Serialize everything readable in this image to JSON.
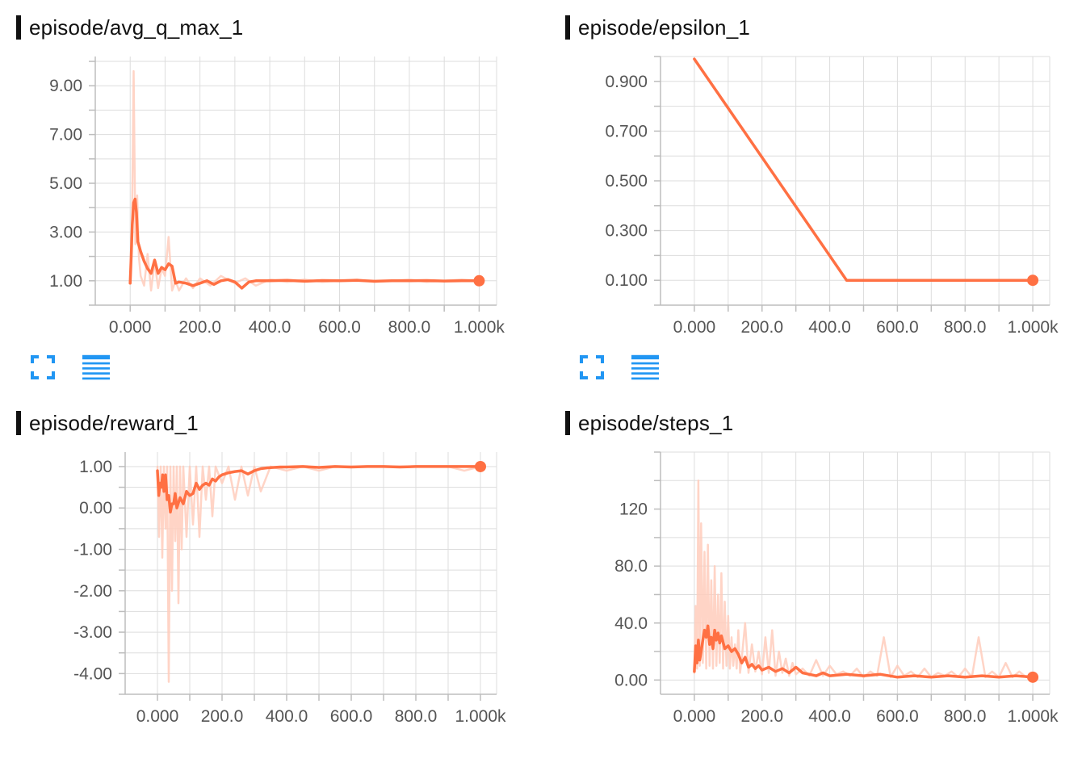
{
  "colors": {
    "line": "#FF7043",
    "raw": "#FFCCBC",
    "grid": "#DDDDDD",
    "axis": "#BDBDBD",
    "icon": "#2196F3"
  },
  "toolbar": {
    "expand_icon": "fullscreen-icon",
    "data_icon": "list-icon"
  },
  "chart_data": [
    {
      "type": "line",
      "title": "episode/avg_q_max_1",
      "xlim": [
        -100,
        1050
      ],
      "ylim": [
        0,
        10.2
      ],
      "x_ticks": [
        0,
        200,
        400,
        600,
        800,
        1000
      ],
      "x_tick_labels": [
        "0.000",
        "200.0",
        "400.0",
        "600.0",
        "800.0",
        "1.000k"
      ],
      "y_ticks": [
        1,
        3,
        5,
        7,
        9
      ],
      "y_tick_labels": [
        "1.00",
        "3.00",
        "5.00",
        "7.00",
        "9.00"
      ],
      "series": [
        {
          "role": "raw",
          "x": [
            0,
            5,
            10,
            15,
            20,
            25,
            30,
            40,
            50,
            60,
            70,
            80,
            90,
            100,
            110,
            120,
            130,
            140,
            160,
            180,
            200,
            230,
            260,
            300,
            330,
            360,
            400,
            450,
            500,
            550,
            600,
            650,
            700,
            750,
            800,
            850,
            900,
            950,
            1000
          ],
          "y": [
            1,
            3,
            9.6,
            2.5,
            4.5,
            2.0,
            1.2,
            0.8,
            2.1,
            0.6,
            1.8,
            0.7,
            1.5,
            1.2,
            2.8,
            0.6,
            1.0,
            0.6,
            1.1,
            0.7,
            1.1,
            0.8,
            1.2,
            0.9,
            1.1,
            0.8,
            1.05,
            0.95,
            1.05,
            0.95,
            1.0,
            1.05,
            0.95,
            1.0,
            1.05,
            0.95,
            1.0,
            1.05,
            1.0
          ]
        },
        {
          "role": "smoothed",
          "x": [
            0,
            3,
            6,
            10,
            14,
            18,
            22,
            26,
            30,
            40,
            50,
            60,
            70,
            80,
            90,
            100,
            110,
            120,
            130,
            140,
            160,
            180,
            200,
            220,
            240,
            260,
            280,
            300,
            320,
            340,
            360,
            400,
            450,
            500,
            550,
            600,
            650,
            700,
            750,
            800,
            850,
            900,
            950,
            1000
          ],
          "y": [
            0.9,
            2.0,
            3.3,
            4.2,
            4.35,
            3.8,
            2.6,
            2.4,
            2.2,
            1.8,
            1.5,
            1.3,
            1.85,
            1.3,
            1.55,
            1.45,
            1.7,
            1.6,
            0.9,
            0.95,
            0.9,
            0.8,
            0.9,
            1.0,
            0.85,
            1.0,
            1.05,
            0.95,
            0.7,
            0.95,
            1.0,
            1.0,
            1.02,
            0.98,
            1.01,
            1.0,
            1.02,
            0.98,
            1.0,
            1.0,
            1.01,
            0.99,
            1.0,
            1.0
          ]
        }
      ]
    },
    {
      "type": "line",
      "title": "episode/epsilon_1",
      "xlim": [
        -100,
        1050
      ],
      "ylim": [
        0.0,
        1.0
      ],
      "x_ticks": [
        0,
        200,
        400,
        600,
        800,
        1000
      ],
      "x_tick_labels": [
        "0.000",
        "200.0",
        "400.0",
        "600.0",
        "800.0",
        "1.000k"
      ],
      "y_ticks": [
        0.1,
        0.3,
        0.5,
        0.7,
        0.9
      ],
      "y_tick_labels": [
        "0.100",
        "0.300",
        "0.500",
        "0.700",
        "0.900"
      ],
      "series": [
        {
          "role": "smoothed",
          "x": [
            0,
            450,
            1000
          ],
          "y": [
            0.99,
            0.1,
            0.1
          ]
        }
      ]
    },
    {
      "type": "line",
      "title": "episode/reward_1",
      "xlim": [
        -100,
        1050
      ],
      "ylim": [
        -4.5,
        1.35
      ],
      "x_ticks": [
        0,
        200,
        400,
        600,
        800,
        1000
      ],
      "x_tick_labels": [
        "0.000",
        "200.0",
        "400.0",
        "600.0",
        "800.0",
        "1.000k"
      ],
      "y_ticks": [
        1,
        0,
        -1,
        -2,
        -3,
        -4
      ],
      "y_tick_labels": [
        "1.00",
        "0.00",
        "-1.00",
        "-2.00",
        "-3.00",
        "-4.00"
      ],
      "series": [
        {
          "role": "raw",
          "x": [
            0,
            5,
            10,
            15,
            20,
            25,
            30,
            35,
            40,
            45,
            50,
            55,
            60,
            65,
            70,
            75,
            80,
            90,
            100,
            110,
            120,
            130,
            140,
            150,
            160,
            170,
            180,
            200,
            220,
            240,
            260,
            280,
            300,
            320,
            350,
            400,
            450,
            500,
            550,
            600,
            650,
            700,
            750,
            800,
            850,
            900,
            950,
            1000
          ],
          "y": [
            1,
            -0.7,
            1,
            -1.2,
            1,
            -0.5,
            1,
            -4.2,
            1,
            -2.0,
            1,
            -0.8,
            1,
            -2.3,
            1,
            -1.0,
            1,
            -0.7,
            1,
            -0.4,
            1,
            -0.7,
            1,
            0.2,
            1,
            -0.2,
            1,
            0.6,
            1,
            0.2,
            1,
            0.3,
            1,
            0.4,
            1,
            0.9,
            1,
            0.9,
            1,
            1,
            1,
            1,
            1,
            1,
            1,
            1,
            0.9,
            1
          ]
        },
        {
          "role": "smoothed",
          "x": [
            0,
            4,
            8,
            12,
            16,
            20,
            25,
            30,
            35,
            40,
            45,
            50,
            55,
            60,
            70,
            80,
            90,
            100,
            110,
            120,
            130,
            140,
            150,
            160,
            170,
            180,
            190,
            200,
            220,
            240,
            260,
            280,
            300,
            320,
            340,
            360,
            380,
            400,
            450,
            500,
            550,
            600,
            650,
            700,
            750,
            800,
            850,
            900,
            950,
            1000
          ],
          "y": [
            0.9,
            0.3,
            0.6,
            0.5,
            0.8,
            0.4,
            0.8,
            0.2,
            0.3,
            -0.1,
            0.1,
            0.1,
            0.35,
            0.0,
            0.25,
            0.1,
            0.4,
            0.3,
            0.35,
            0.6,
            0.45,
            0.55,
            0.6,
            0.55,
            0.7,
            0.65,
            0.75,
            0.8,
            0.85,
            0.88,
            0.9,
            0.82,
            0.9,
            0.95,
            0.97,
            0.98,
            0.99,
            0.99,
            1.0,
            0.98,
            1.0,
            0.99,
            1.0,
            1.0,
            0.99,
            1.0,
            1.0,
            1.0,
            1.0,
            1.0
          ]
        }
      ]
    },
    {
      "type": "line",
      "title": "episode/steps_1",
      "xlim": [
        -100,
        1050
      ],
      "ylim": [
        -10,
        160
      ],
      "x_ticks": [
        0,
        200,
        400,
        600,
        800,
        1000
      ],
      "x_tick_labels": [
        "0.000",
        "200.0",
        "400.0",
        "600.0",
        "800.0",
        "1.000k"
      ],
      "y_ticks": [
        0,
        40,
        80,
        120
      ],
      "y_tick_labels": [
        "0.00",
        "40.0",
        "80.0",
        "120"
      ],
      "series": [
        {
          "role": "raw",
          "x": [
            0,
            4,
            8,
            12,
            16,
            20,
            25,
            30,
            35,
            40,
            45,
            50,
            55,
            60,
            65,
            70,
            75,
            80,
            85,
            90,
            95,
            100,
            105,
            110,
            115,
            120,
            125,
            130,
            135,
            140,
            150,
            160,
            170,
            180,
            190,
            200,
            210,
            220,
            230,
            240,
            250,
            260,
            270,
            280,
            290,
            300,
            320,
            340,
            360,
            380,
            400,
            420,
            440,
            460,
            480,
            500,
            520,
            540,
            560,
            580,
            600,
            620,
            640,
            660,
            680,
            700,
            720,
            740,
            760,
            780,
            800,
            820,
            840,
            860,
            880,
            900,
            920,
            940,
            960,
            980,
            1000
          ],
          "y": [
            5,
            52,
            8,
            140,
            10,
            110,
            12,
            90,
            8,
            95,
            10,
            70,
            8,
            80,
            10,
            60,
            12,
            75,
            8,
            55,
            10,
            45,
            8,
            30,
            10,
            25,
            8,
            35,
            5,
            15,
            40,
            5,
            25,
            6,
            20,
            4,
            30,
            5,
            35,
            3,
            20,
            5,
            15,
            3,
            12,
            4,
            8,
            3,
            14,
            3,
            10,
            4,
            6,
            3,
            8,
            2,
            6,
            3,
            30,
            2,
            10,
            3,
            6,
            2,
            8,
            2,
            5,
            3,
            6,
            2,
            8,
            2,
            30,
            2,
            6,
            2,
            12,
            2,
            6,
            2,
            3
          ]
        },
        {
          "role": "smoothed",
          "x": [
            0,
            4,
            8,
            12,
            16,
            20,
            25,
            30,
            35,
            40,
            45,
            50,
            55,
            60,
            65,
            70,
            75,
            80,
            90,
            100,
            110,
            120,
            130,
            140,
            150,
            160,
            170,
            180,
            190,
            200,
            220,
            240,
            260,
            280,
            300,
            320,
            340,
            360,
            380,
            400,
            450,
            500,
            550,
            600,
            650,
            700,
            750,
            800,
            850,
            900,
            950,
            1000
          ],
          "y": [
            6,
            24,
            12,
            28,
            14,
            20,
            28,
            35,
            30,
            38,
            25,
            30,
            22,
            35,
            28,
            33,
            26,
            31,
            22,
            24,
            20,
            22,
            18,
            12,
            16,
            9,
            11,
            8,
            10,
            7,
            9,
            6,
            8,
            5,
            9,
            5,
            4,
            3,
            5,
            3,
            4,
            3,
            4,
            2,
            3,
            2,
            3,
            2,
            3,
            2,
            3,
            2
          ]
        }
      ]
    }
  ]
}
